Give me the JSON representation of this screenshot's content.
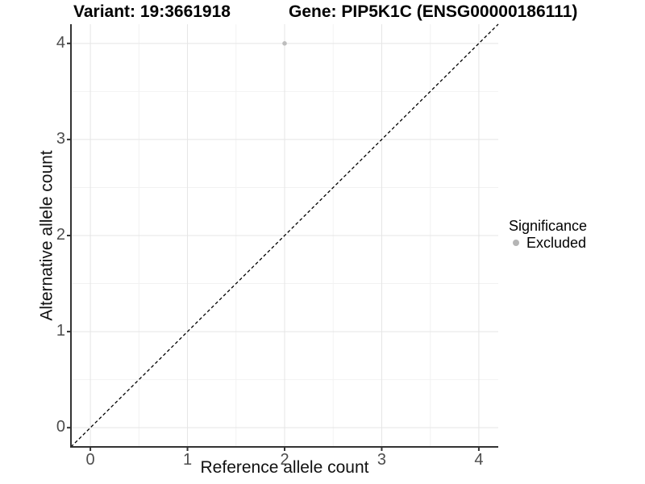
{
  "chart_data": {
    "type": "scatter",
    "title_left": "Variant: 19:3661918",
    "title_right": "Gene: PIP5K1C (ENSG00000186111)",
    "xlabel": "Reference allele count",
    "ylabel": "Alternative allele count",
    "xlim": [
      -0.2,
      4.2
    ],
    "ylim": [
      -0.2,
      4.2
    ],
    "x_ticks": [
      0,
      1,
      2,
      3,
      4
    ],
    "y_ticks": [
      0,
      1,
      2,
      3,
      4
    ],
    "minor_gridlines_x": [
      0.5,
      1.5,
      2.5,
      3.5
    ],
    "minor_gridlines_y": [
      0.5,
      1.5,
      2.5,
      3.5
    ],
    "grid": "on",
    "series": [
      {
        "name": "Excluded",
        "marker": "circle",
        "color": "#bdbdbd",
        "points": [
          {
            "x": 2,
            "y": 4
          }
        ]
      }
    ],
    "reference_line": {
      "type": "identity",
      "slope": 1,
      "intercept": 0,
      "style": "dashed",
      "color": "#000000"
    },
    "legend": {
      "title": "Significance",
      "position": "right",
      "items": [
        {
          "label": "Excluded",
          "color": "#b5b5b5",
          "marker": "circle"
        }
      ]
    }
  },
  "colors": {
    "background": "#ffffff",
    "grid_major": "#e5e5e5",
    "grid_minor": "#f2f2f2",
    "axis_line": "#333333",
    "tick_mark": "#333333",
    "tick_label": "#4d4d4d",
    "axis_title": "#111111",
    "title": "#000000",
    "point": "#bdbdbd"
  }
}
